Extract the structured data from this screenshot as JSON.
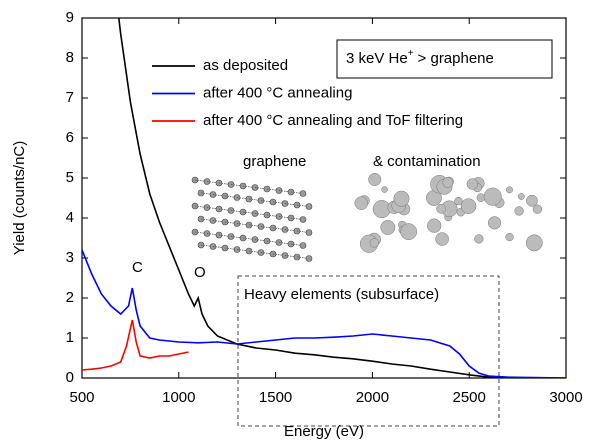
{
  "chart_data": {
    "type": "line",
    "xlabel": "Energy (eV)",
    "ylabel": "Yield (counts/nC)",
    "box_label": [
      "3 keV He",
      "+",
      "> graphene"
    ],
    "annotations": [
      "C",
      "O",
      "Heavy elements (subsurface)",
      "graphene",
      "& contamination"
    ],
    "xlim": [
      500,
      3000
    ],
    "xticks": [
      500,
      1000,
      1500,
      2000,
      2500,
      3000
    ],
    "ylim": [
      0,
      9
    ],
    "yticks": [
      0,
      1,
      2,
      3,
      4,
      5,
      6,
      7,
      8,
      9
    ],
    "series": [
      {
        "name": "as deposited",
        "color": "#000000",
        "x": [
          690,
          700,
          750,
          800,
          850,
          900,
          950,
          1000,
          1050,
          1080,
          1100,
          1120,
          1150,
          1200,
          1300,
          1400,
          1500,
          1600,
          1700,
          1800,
          1900,
          2000,
          2100,
          2200,
          2300,
          2400,
          2500,
          2600,
          2700,
          3000
        ],
        "values": [
          9,
          8.6,
          6.9,
          5.6,
          4.6,
          3.9,
          3.3,
          2.7,
          2.1,
          1.8,
          2.0,
          1.6,
          1.3,
          1.05,
          0.85,
          0.75,
          0.7,
          0.62,
          0.58,
          0.52,
          0.48,
          0.42,
          0.35,
          0.3,
          0.22,
          0.15,
          0.08,
          0.02,
          0,
          0
        ]
      },
      {
        "name": "after 400 °C annealing",
        "color": "#0000ff",
        "x": [
          500,
          550,
          600,
          650,
          700,
          740,
          760,
          780,
          800,
          850,
          900,
          1000,
          1100,
          1200,
          1300,
          1400,
          1500,
          1600,
          1700,
          1800,
          1900,
          2000,
          2100,
          2200,
          2300,
          2400,
          2450,
          2500,
          2550,
          2600,
          2700,
          3000
        ],
        "values": [
          3.2,
          2.6,
          2.1,
          1.8,
          1.6,
          1.8,
          2.25,
          1.7,
          1.3,
          1.0,
          0.95,
          0.9,
          0.88,
          0.9,
          0.85,
          0.9,
          0.95,
          1.0,
          1.0,
          1.02,
          1.05,
          1.1,
          1.05,
          1.0,
          0.95,
          0.8,
          0.6,
          0.3,
          0.12,
          0.05,
          0.02,
          0
        ]
      },
      {
        "name": "after 400 °C annealing and ToF filtering",
        "color": "#ff0000",
        "x": [
          500,
          550,
          600,
          650,
          700,
          730,
          760,
          780,
          800,
          850,
          900,
          950,
          1000,
          1050
        ],
        "values": [
          0.2,
          0.22,
          0.25,
          0.3,
          0.4,
          0.8,
          1.45,
          0.9,
          0.55,
          0.5,
          0.55,
          0.55,
          0.6,
          0.65
        ]
      }
    ]
  }
}
